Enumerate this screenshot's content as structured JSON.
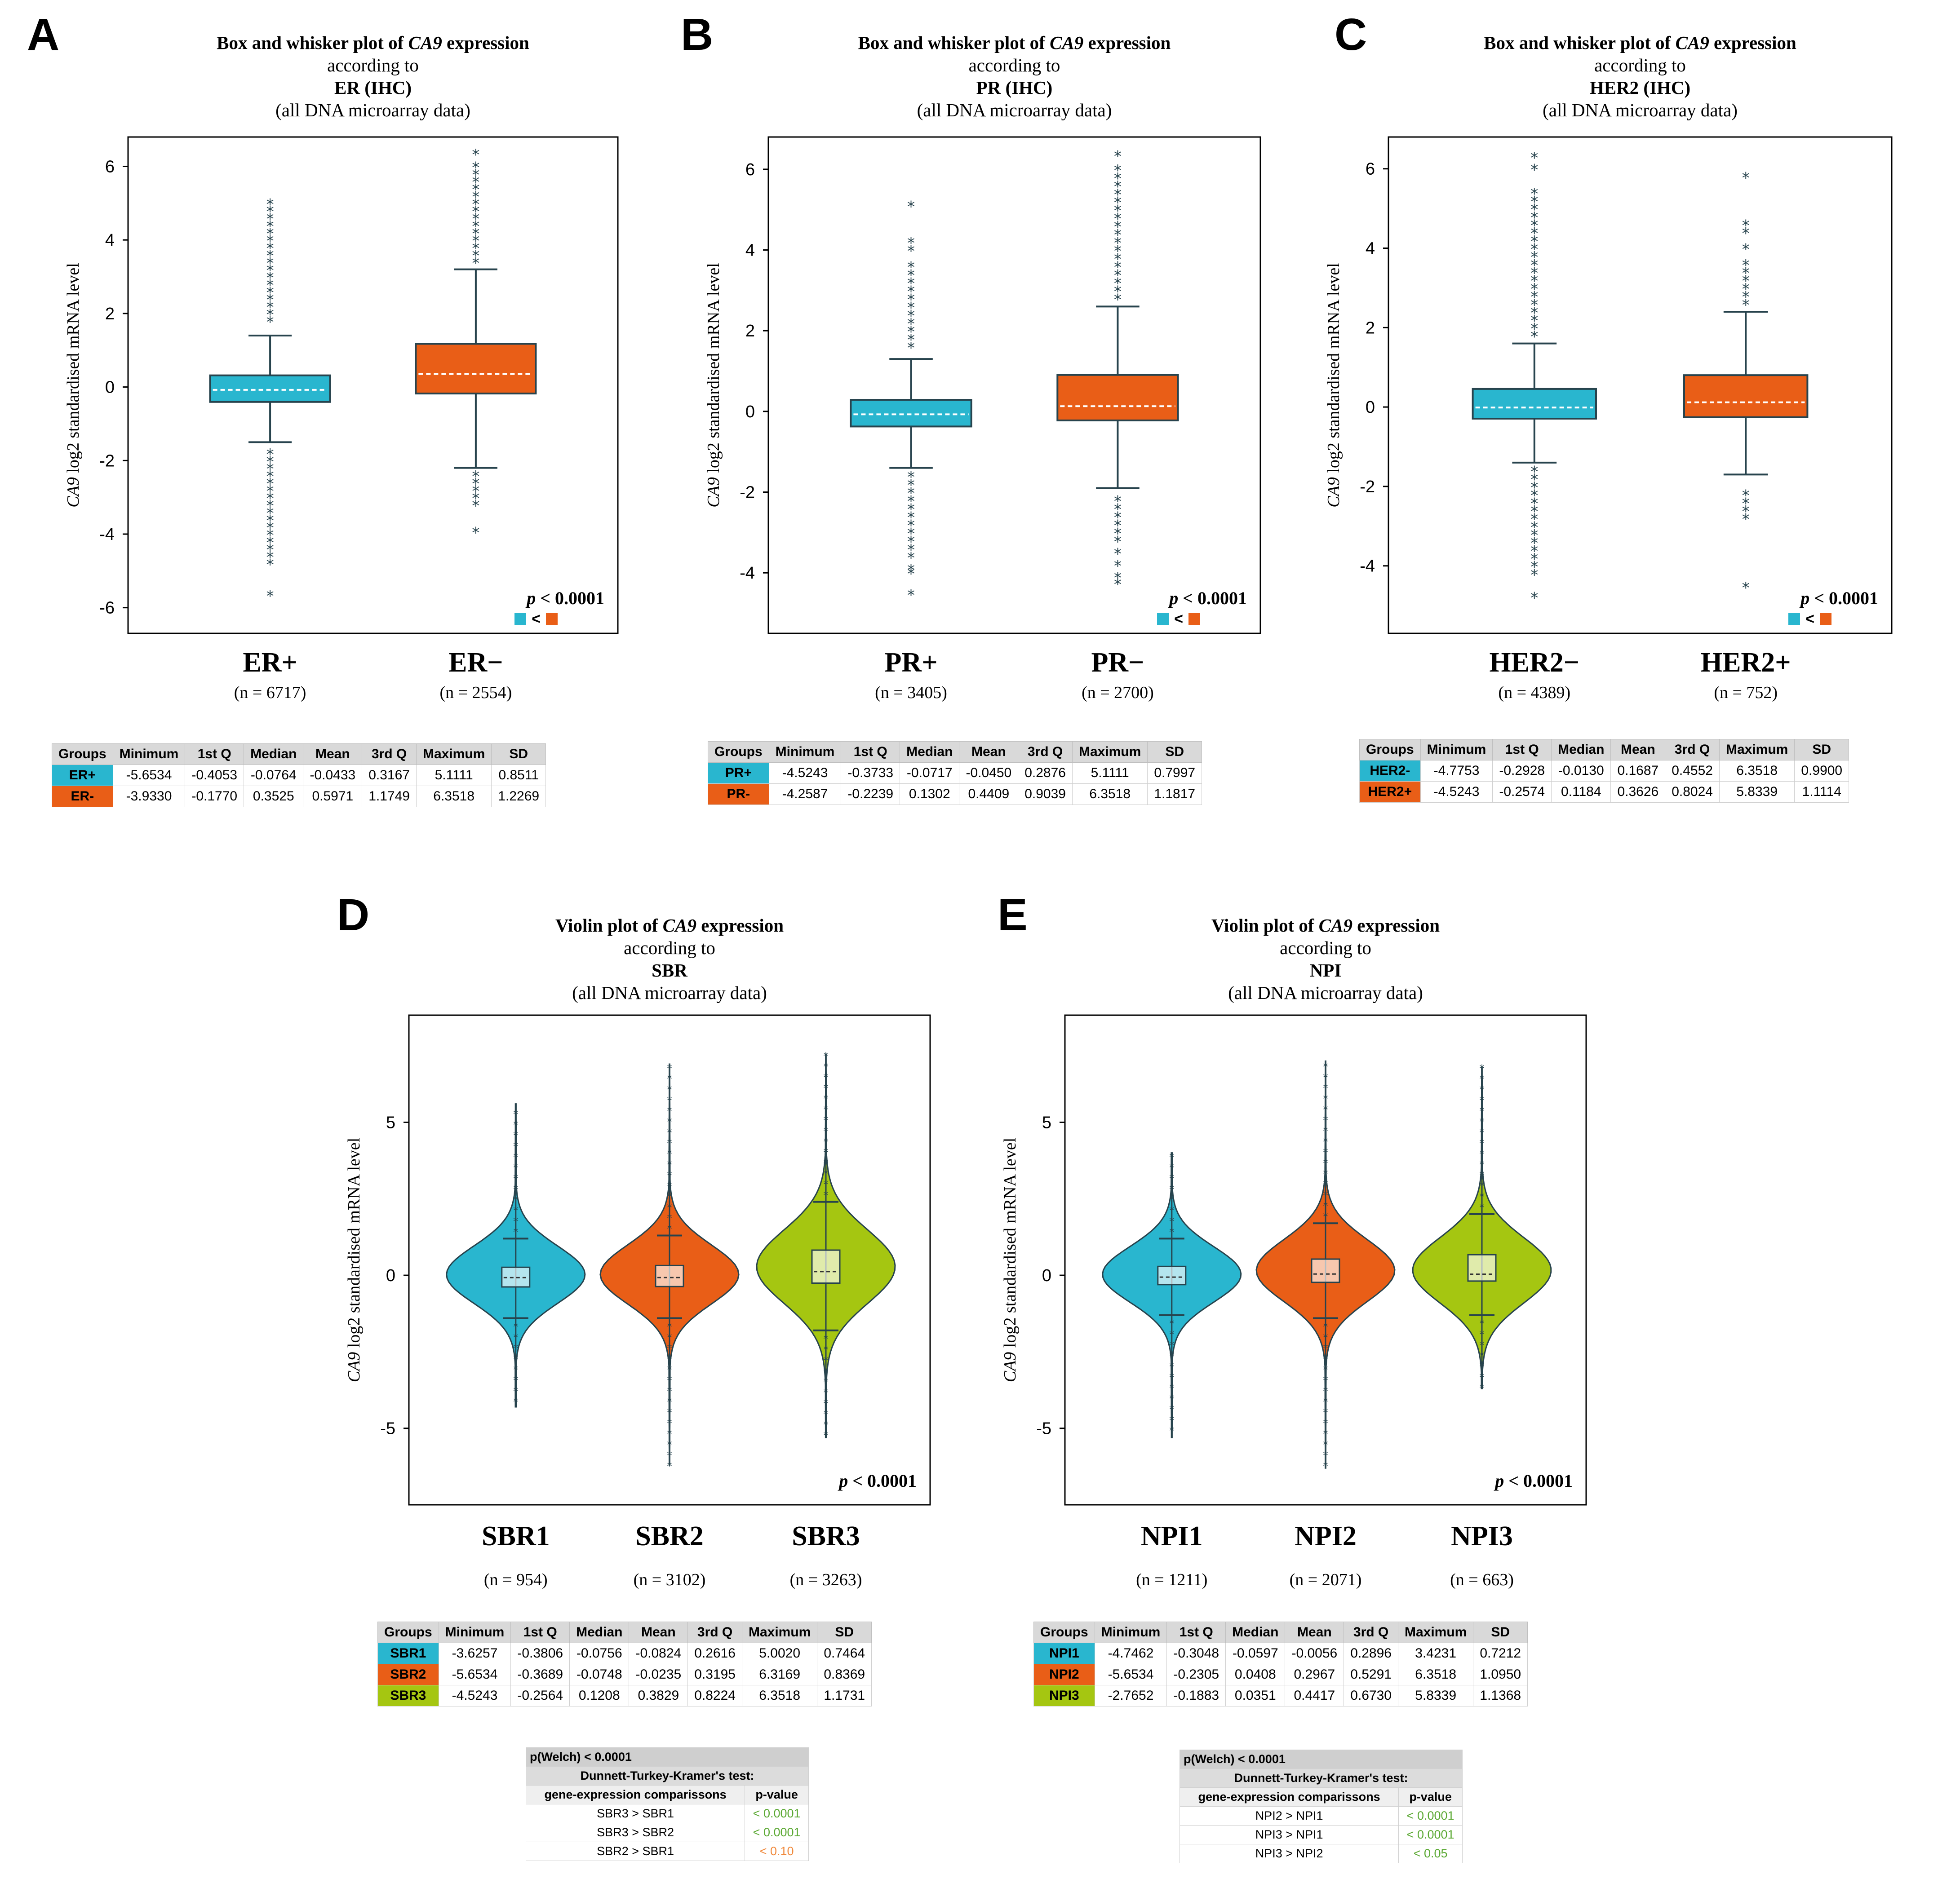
{
  "colors": {
    "cyan": "#29b6cf",
    "orange": "#e95e17",
    "lime": "#a5c611",
    "line": "#27434d"
  },
  "panels": [
    {
      "letter": "A",
      "plot_kind": "box",
      "title_line1": "Box and whisker plot of",
      "gene": "CA9",
      "title_word": "expression",
      "title_line2": "according to",
      "title_line3": "ER (IHC)",
      "title_line4": "(all DNA microarray data)",
      "ylabel_gene": "CA9",
      "ylabel_rest": " log2 standardised mRNA level",
      "pvalue_label": "p",
      "pvalue_rest": " < 0.0001",
      "compare_symbol": "<",
      "chart_data": {
        "type": "box",
        "ylim": [
          -6.7,
          6.8
        ],
        "yticks": [
          -6,
          -4,
          -2,
          0,
          2,
          4,
          6
        ],
        "groups": [
          {
            "name": "ER+",
            "n": "(n = 6717)",
            "color": "cyan",
            "q1": -0.4053,
            "median": -0.0764,
            "q3": 0.3167,
            "wlow": -1.5,
            "whigh": 1.4,
            "outliers": [
              -5.6534,
              -4.8,
              -4.6,
              -4.4,
              -4.2,
              -4.0,
              -3.8,
              -3.6,
              -3.4,
              -3.2,
              -3.0,
              -2.8,
              -2.6,
              -2.4,
              -2.2,
              -2.0,
              -1.8,
              1.8,
              2.0,
              2.2,
              2.4,
              2.6,
              2.8,
              3.0,
              3.2,
              3.4,
              3.6,
              3.8,
              4.0,
              4.2,
              4.4,
              4.6,
              4.8,
              5.0
            ]
          },
          {
            "name": "ER−",
            "n": "(n = 2554)",
            "color": "orange",
            "q1": -0.177,
            "median": 0.3525,
            "q3": 1.1749,
            "wlow": -2.2,
            "whigh": 3.2,
            "outliers": [
              -3.933,
              -3.2,
              -3.0,
              -2.8,
              -2.6,
              -2.4,
              3.4,
              3.6,
              3.8,
              4.0,
              4.2,
              4.4,
              4.6,
              4.8,
              5.0,
              5.2,
              5.4,
              5.6,
              5.8,
              6.0,
              6.35
            ]
          }
        ]
      },
      "table": {
        "headers": [
          "Groups",
          "Minimum",
          "1st Q",
          "Median",
          "Mean",
          "3rd Q",
          "Maximum",
          "SD"
        ],
        "rows": [
          {
            "color": "cyan",
            "cells": [
              "ER+",
              "-5.6534",
              "-0.4053",
              "-0.0764",
              "-0.0433",
              "0.3167",
              "5.1111",
              "0.8511"
            ]
          },
          {
            "color": "orange",
            "cells": [
              "ER-",
              "-3.9330",
              "-0.1770",
              "0.3525",
              "0.5971",
              "1.1749",
              "6.3518",
              "1.2269"
            ]
          }
        ]
      }
    },
    {
      "letter": "B",
      "plot_kind": "box",
      "title_line1": "Box and whisker plot of",
      "gene": "CA9",
      "title_word": "expression",
      "title_line2": "according to",
      "title_line3": "PR (IHC)",
      "title_line4": "(all DNA microarray data)",
      "ylabel_gene": "CA9",
      "ylabel_rest": " log2 standardised mRNA level",
      "pvalue_label": "p",
      "pvalue_rest": " < 0.0001",
      "compare_symbol": "<",
      "chart_data": {
        "type": "box",
        "ylim": [
          -5.5,
          6.8
        ],
        "yticks": [
          -4,
          -2,
          0,
          2,
          4,
          6
        ],
        "groups": [
          {
            "name": "PR+",
            "n": "(n = 3405)",
            "color": "cyan",
            "q1": -0.3733,
            "median": -0.0717,
            "q3": 0.2876,
            "wlow": -1.4,
            "whigh": 1.3,
            "outliers": [
              -4.5243,
              -4.0,
              -3.9,
              -3.6,
              -3.4,
              -3.2,
              -3.0,
              -2.8,
              -2.6,
              -2.4,
              -2.2,
              -2.0,
              -1.8,
              -1.6,
              1.6,
              1.8,
              2.0,
              2.2,
              2.4,
              2.6,
              2.8,
              3.0,
              3.2,
              3.4,
              3.6,
              4.0,
              4.2,
              5.1
            ]
          },
          {
            "name": "PR−",
            "n": "(n = 2700)",
            "color": "orange",
            "q1": -0.2239,
            "median": 0.1302,
            "q3": 0.9039,
            "wlow": -1.9,
            "whigh": 2.6,
            "outliers": [
              -4.2587,
              -4.1,
              -3.8,
              -3.5,
              -3.2,
              -3.0,
              -2.8,
              -2.6,
              -2.4,
              -2.2,
              2.8,
              3.0,
              3.2,
              3.4,
              3.6,
              3.8,
              4.0,
              4.2,
              4.4,
              4.6,
              4.8,
              5.0,
              5.2,
              5.4,
              5.6,
              5.8,
              6.0,
              6.35
            ]
          }
        ]
      },
      "table": {
        "headers": [
          "Groups",
          "Minimum",
          "1st Q",
          "Median",
          "Mean",
          "3rd Q",
          "Maximum",
          "SD"
        ],
        "rows": [
          {
            "color": "cyan",
            "cells": [
              "PR+",
              "-4.5243",
              "-0.3733",
              "-0.0717",
              "-0.0450",
              "0.2876",
              "5.1111",
              "0.7997"
            ]
          },
          {
            "color": "orange",
            "cells": [
              "PR-",
              "-4.2587",
              "-0.2239",
              "0.1302",
              "0.4409",
              "0.9039",
              "6.3518",
              "1.1817"
            ]
          }
        ]
      }
    },
    {
      "letter": "C",
      "plot_kind": "box",
      "title_line1": "Box and whisker plot of",
      "gene": "CA9",
      "title_word": "expression",
      "title_line2": "according to",
      "title_line3": "HER2 (IHC)",
      "title_line4": "(all DNA microarray data)",
      "ylabel_gene": "CA9",
      "ylabel_rest": " log2 standardised mRNA level",
      "pvalue_label": "p",
      "pvalue_rest": " < 0.0001",
      "compare_symbol": "<",
      "chart_data": {
        "type": "box",
        "ylim": [
          -5.7,
          6.8
        ],
        "yticks": [
          -4,
          -2,
          0,
          2,
          4,
          6
        ],
        "groups": [
          {
            "name": "HER2−",
            "n": "(n = 4389)",
            "color": "cyan",
            "q1": -0.2928,
            "median": -0.013,
            "q3": 0.4552,
            "wlow": -1.4,
            "whigh": 1.6,
            "outliers": [
              -4.7753,
              -4.2,
              -4.0,
              -3.8,
              -3.6,
              -3.4,
              -3.2,
              -3.0,
              -2.8,
              -2.6,
              -2.4,
              -2.2,
              -2.0,
              -1.8,
              -1.6,
              1.8,
              2.0,
              2.2,
              2.4,
              2.6,
              2.8,
              3.0,
              3.2,
              3.4,
              3.6,
              3.8,
              4.0,
              4.2,
              4.4,
              4.6,
              4.8,
              5.0,
              5.2,
              5.4,
              6.0,
              6.3
            ]
          },
          {
            "name": "HER2+",
            "n": "(n = 752)",
            "color": "orange",
            "q1": -0.2574,
            "median": 0.1184,
            "q3": 0.8024,
            "wlow": -1.7,
            "whigh": 2.4,
            "outliers": [
              -4.5243,
              -2.8,
              -2.6,
              -2.4,
              -2.2,
              2.6,
              2.8,
              3.0,
              3.2,
              3.4,
              3.6,
              4.0,
              4.4,
              4.6,
              5.8
            ]
          }
        ]
      },
      "table": {
        "headers": [
          "Groups",
          "Minimum",
          "1st Q",
          "Median",
          "Mean",
          "3rd Q",
          "Maximum",
          "SD"
        ],
        "rows": [
          {
            "color": "cyan",
            "cells": [
              "HER2-",
              "-4.7753",
              "-0.2928",
              "-0.0130",
              "0.1687",
              "0.4552",
              "6.3518",
              "0.9900"
            ]
          },
          {
            "color": "orange",
            "cells": [
              "HER2+",
              "-4.5243",
              "-0.2574",
              "0.1184",
              "0.3626",
              "0.8024",
              "5.8339",
              "1.1114"
            ]
          }
        ]
      }
    },
    {
      "letter": "D",
      "plot_kind": "violin",
      "title_line1": "Violin plot of",
      "gene": "CA9",
      "title_word": "expression",
      "title_line2": "according to",
      "title_line3": "SBR",
      "title_line4": "(all DNA microarray data)",
      "ylabel_gene": "CA9",
      "ylabel_rest": " log2 standardised mRNA level",
      "pvalue_label": "p",
      "pvalue_rest": " < 0.0001",
      "chart_data": {
        "type": "violin",
        "ylim": [
          -7.5,
          8.5
        ],
        "yticks": [
          -5,
          0,
          5
        ],
        "groups": [
          {
            "name": "SBR1",
            "n": "(n = 954)",
            "color": "cyan",
            "q1": -0.3806,
            "median": -0.0756,
            "q3": 0.2616,
            "wlow": -1.4,
            "whigh": 1.2,
            "min": -4.3,
            "max": 5.6,
            "width": 0.85
          },
          {
            "name": "SBR2",
            "n": "(n = 3102)",
            "color": "orange",
            "q1": -0.3689,
            "median": -0.0748,
            "q3": 0.3195,
            "wlow": -1.4,
            "whigh": 1.3,
            "min": -6.2,
            "max": 6.9,
            "width": 0.85
          },
          {
            "name": "SBR3",
            "n": "(n = 3263)",
            "color": "lime",
            "q1": -0.2564,
            "median": 0.1208,
            "q3": 0.8224,
            "wlow": -1.8,
            "whigh": 2.4,
            "min": -5.3,
            "max": 7.2,
            "width": 0.85
          }
        ]
      },
      "table": {
        "headers": [
          "Groups",
          "Minimum",
          "1st Q",
          "Median",
          "Mean",
          "3rd Q",
          "Maximum",
          "SD"
        ],
        "rows": [
          {
            "color": "cyan",
            "cells": [
              "SBR1",
              "-3.6257",
              "-0.3806",
              "-0.0756",
              "-0.0824",
              "0.2616",
              "5.0020",
              "0.7464"
            ]
          },
          {
            "color": "orange",
            "cells": [
              "SBR2",
              "-5.6534",
              "-0.3689",
              "-0.0748",
              "-0.0235",
              "0.3195",
              "6.3169",
              "0.8369"
            ]
          },
          {
            "color": "lime",
            "cells": [
              "SBR3",
              "-4.5243",
              "-0.2564",
              "0.1208",
              "0.3829",
              "0.8224",
              "6.3518",
              "1.1731"
            ]
          }
        ]
      },
      "dtk": {
        "welch": "p(Welch) < 0.0001",
        "test_title": "Dunnett-Turkey-Kramer's test:",
        "col1": "gene-expression comparissons",
        "col2": "p-value",
        "rows": [
          {
            "cmp": "SBR3 > SBR1",
            "p": "< 0.0001",
            "color": "#5aa832"
          },
          {
            "cmp": "SBR3 > SBR2",
            "p": "< 0.0001",
            "color": "#5aa832"
          },
          {
            "cmp": "SBR2 > SBR1",
            "p": "< 0.10",
            "color": "#f0893c"
          }
        ]
      }
    },
    {
      "letter": "E",
      "plot_kind": "violin",
      "title_line1": "Violin plot of",
      "gene": "CA9",
      "title_word": "expression",
      "title_line2": "according to",
      "title_line3": "NPI",
      "title_line4": "(all DNA microarray data)",
      "ylabel_gene": "CA9",
      "ylabel_rest": " log2 standardised mRNA level",
      "pvalue_label": "p",
      "pvalue_rest": " < 0.0001",
      "chart_data": {
        "type": "violin",
        "ylim": [
          -7.5,
          8.5
        ],
        "yticks": [
          -5,
          0,
          5
        ],
        "groups": [
          {
            "name": "NPI1",
            "n": "(n = 1211)",
            "color": "cyan",
            "q1": -0.3048,
            "median": -0.0597,
            "q3": 0.2896,
            "wlow": -1.3,
            "whigh": 1.2,
            "min": -5.3,
            "max": 4.0,
            "width": 0.85
          },
          {
            "name": "NPI2",
            "n": "(n = 2071)",
            "color": "orange",
            "q1": -0.2305,
            "median": 0.0408,
            "q3": 0.5291,
            "wlow": -1.4,
            "whigh": 1.7,
            "min": -6.3,
            "max": 7.0,
            "width": 0.85
          },
          {
            "name": "NPI3",
            "n": "(n = 663)",
            "color": "lime",
            "q1": -0.1883,
            "median": 0.0351,
            "q3": 0.673,
            "wlow": -1.3,
            "whigh": 2.0,
            "min": -3.7,
            "max": 6.8,
            "width": 0.85
          }
        ]
      },
      "table": {
        "headers": [
          "Groups",
          "Minimum",
          "1st Q",
          "Median",
          "Mean",
          "3rd Q",
          "Maximum",
          "SD"
        ],
        "rows": [
          {
            "color": "cyan",
            "cells": [
              "NPI1",
              "-4.7462",
              "-0.3048",
              "-0.0597",
              "-0.0056",
              "0.2896",
              "3.4231",
              "0.7212"
            ]
          },
          {
            "color": "orange",
            "cells": [
              "NPI2",
              "-5.6534",
              "-0.2305",
              "0.0408",
              "0.2967",
              "0.5291",
              "6.3518",
              "1.0950"
            ]
          },
          {
            "color": "lime",
            "cells": [
              "NPI3",
              "-2.7652",
              "-0.1883",
              "0.0351",
              "0.4417",
              "0.6730",
              "5.8339",
              "1.1368"
            ]
          }
        ]
      },
      "dtk": {
        "welch": "p(Welch) < 0.0001",
        "test_title": "Dunnett-Turkey-Kramer's test:",
        "col1": "gene-expression comparissons",
        "col2": "p-value",
        "rows": [
          {
            "cmp": "NPI2 > NPI1",
            "p": "< 0.0001",
            "color": "#5aa832"
          },
          {
            "cmp": "NPI3 > NPI1",
            "p": "< 0.0001",
            "color": "#5aa832"
          },
          {
            "cmp": "NPI3 > NPI2",
            "p": "< 0.05",
            "color": "#5aa832"
          }
        ]
      }
    }
  ]
}
